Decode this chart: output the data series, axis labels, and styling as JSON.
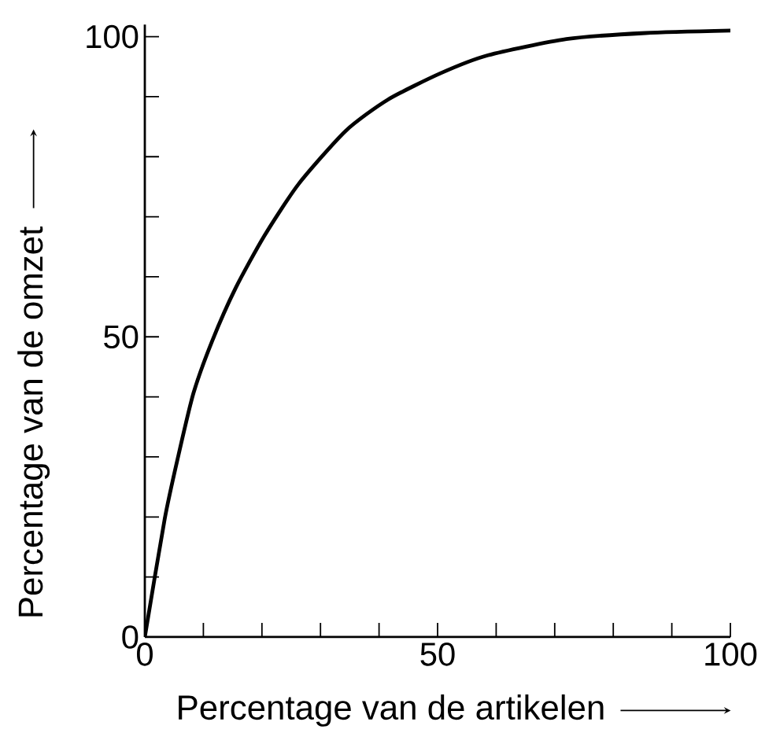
{
  "chart_data": {
    "type": "line",
    "xlabel": "Percentage van de artikelen",
    "ylabel": "Percentage van de omzet",
    "x": [
      0,
      3.4,
      5.7,
      8.3,
      11.5,
      15.5,
      20.4,
      26.3,
      34.3,
      41.5,
      50.5,
      58.6,
      72,
      85.5,
      100
    ],
    "series": [
      {
        "color": "#000000",
        "values": [
          0,
          19.7,
          30.1,
          40.6,
          49.3,
          58.1,
          66.8,
          75.5,
          84.3,
          89.5,
          93.9,
          96.9,
          99.6,
          100.6,
          101
        ]
      }
    ],
    "xlim": [
      0,
      100
    ],
    "ylim": [
      0,
      102
    ],
    "xticks": [
      0,
      {
        "value": 10,
        "label": null
      },
      {
        "value": 20,
        "label": null
      },
      {
        "value": 30,
        "label": null
      },
      {
        "value": 40,
        "label": null
      },
      50,
      {
        "value": 60,
        "label": null
      },
      {
        "value": 70,
        "label": null
      },
      {
        "value": 80,
        "label": null
      },
      {
        "value": 90,
        "label": null
      },
      100
    ],
    "yticks": [
      0,
      {
        "value": 10,
        "label": null
      },
      {
        "value": 20,
        "label": null
      },
      {
        "value": 30,
        "label": null
      },
      {
        "value": 40,
        "label": null
      },
      50,
      {
        "value": 60,
        "label": null
      },
      {
        "value": 70,
        "label": null
      },
      {
        "value": 80,
        "label": null
      },
      {
        "value": 90,
        "label": null
      },
      100
    ],
    "marker": "none",
    "line_style": "solid"
  }
}
